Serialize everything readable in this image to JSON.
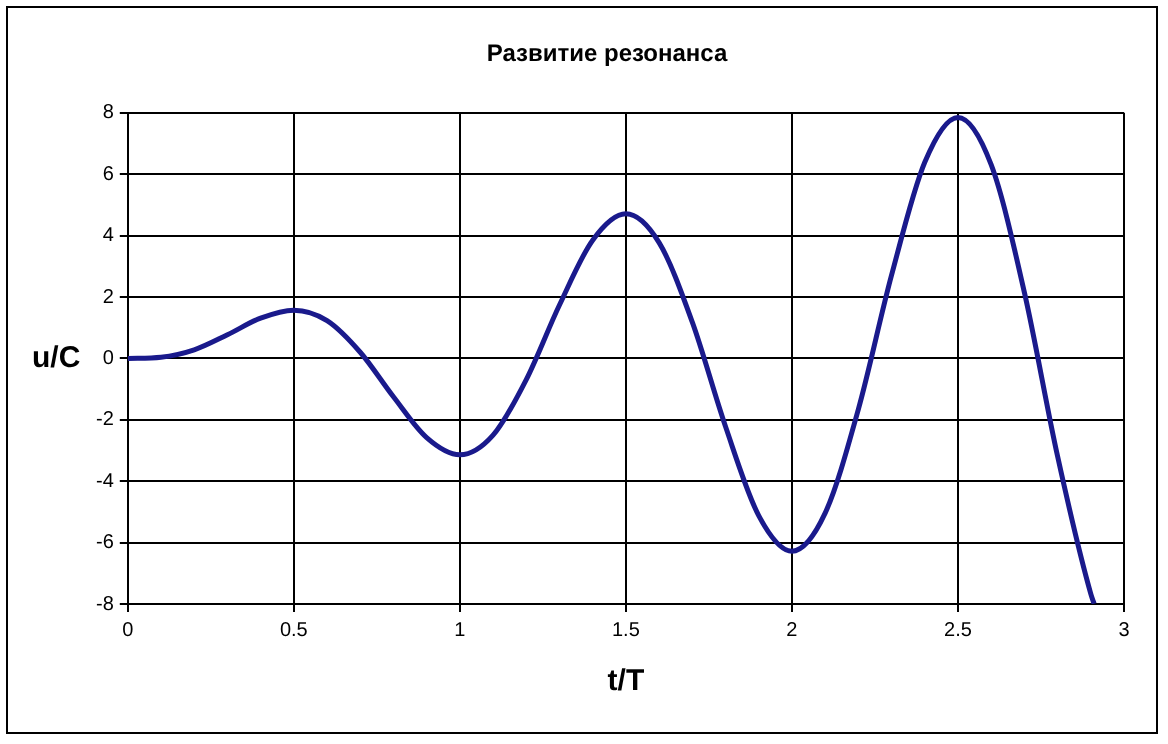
{
  "chart_data": {
    "type": "line",
    "title": "Развитие резонанса",
    "xlabel": "t/T",
    "ylabel": "u/C",
    "x": [
      0,
      0.1,
      0.2,
      0.3,
      0.4,
      0.5,
      0.6,
      0.7,
      0.8,
      0.9,
      1,
      1.1,
      1.2,
      1.3,
      1.4,
      1.5,
      1.6,
      1.7,
      1.8,
      1.9,
      2,
      2.1,
      2.2,
      2.3,
      2.4,
      2.5,
      2.6,
      2.7,
      2.8,
      2.9,
      2.91
    ],
    "series": [
      {
        "color": "#1a1a8c",
        "values": [
          0,
          0.04,
          0.28,
          0.77,
          1.31,
          1.57,
          1.23,
          0.2,
          -1.25,
          -2.58,
          -3.14,
          -2.5,
          -0.69,
          1.74,
          3.85,
          4.71,
          3.77,
          1.18,
          -2.22,
          -5.12,
          -6.28,
          -5.04,
          -1.66,
          2.71,
          6.39,
          7.85,
          6.31,
          2.15,
          -3.19,
          -7.67,
          -7.99
        ]
      }
    ],
    "xlim": [
      0,
      3
    ],
    "xticks": [
      0,
      0.5,
      1,
      1.5,
      2,
      2.5,
      3
    ],
    "ylim": [
      -8,
      8
    ],
    "yticks": [
      -8,
      -6,
      -4,
      -2,
      0,
      2,
      4,
      6,
      8
    ],
    "grid": true,
    "legend": false,
    "marker": "none",
    "line_style": "solid"
  }
}
